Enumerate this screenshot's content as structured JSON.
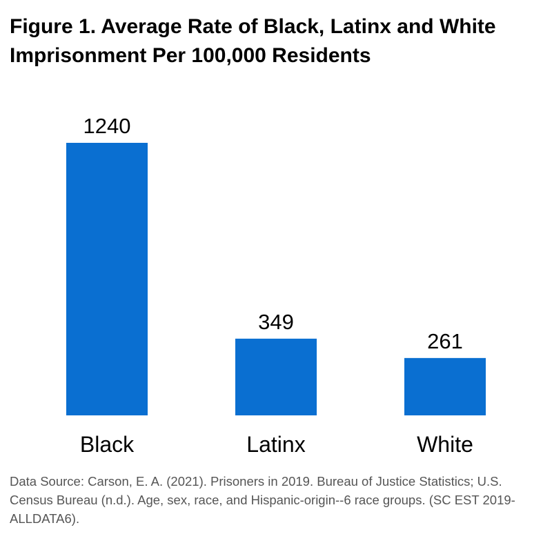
{
  "chart_data": {
    "type": "bar",
    "title": "Figure 1. Average Rate of Black, Latinx and White Imprisonment Per 100,000 Residents",
    "categories": [
      "Black",
      "Latinx",
      "White"
    ],
    "values": [
      1240,
      349,
      261
    ],
    "data_labels": [
      "1240",
      "349",
      "261"
    ],
    "xlabel": "",
    "ylabel": "",
    "ylim": [
      0,
      1240
    ],
    "grid": false,
    "legend": "none",
    "bar_color": "#0a6fd1"
  },
  "source": "Data Source: Carson, E. A. (2021). Prisoners in 2019. Bureau of Justice Statistics; U.S. Census Bureau (n.d.). Age, sex, race, and Hispanic-origin--6 race groups. (SC EST 2019-ALLDATA6)."
}
